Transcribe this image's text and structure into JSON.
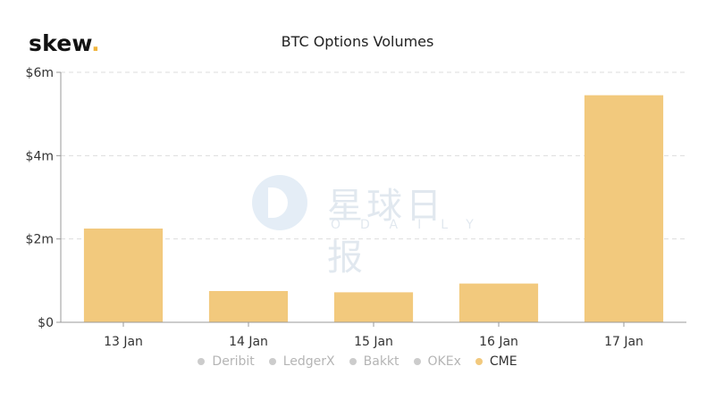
{
  "brand": {
    "name": "skew",
    "dot": "."
  },
  "watermark": {
    "cn": "星球日报",
    "en": "ODAILY"
  },
  "colors": {
    "bar": "#f2c97d",
    "grid": "#dddddd",
    "axis": "#999999",
    "brand_dot": "#f0b43c"
  },
  "chart_data": {
    "type": "bar",
    "title": "BTC Options Volumes",
    "categories": [
      "13 Jan",
      "14 Jan",
      "15 Jan",
      "16 Jan",
      "17 Jan"
    ],
    "series": [
      {
        "name": "CME",
        "values": [
          2.25,
          0.75,
          0.72,
          0.93,
          5.45
        ]
      }
    ],
    "y_ticks": [
      {
        "value": 0,
        "label": "$0"
      },
      {
        "value": 2,
        "label": "$2m"
      },
      {
        "value": 4,
        "label": "$4m"
      },
      {
        "value": 6,
        "label": "$6m"
      }
    ],
    "ylim": [
      0,
      6
    ],
    "ylabel": "",
    "xlabel": "",
    "grid": true,
    "legend": {
      "position": "bottom",
      "entries": [
        {
          "name": "Deribit",
          "visible": false
        },
        {
          "name": "LedgerX",
          "visible": false
        },
        {
          "name": "Bakkt",
          "visible": false
        },
        {
          "name": "OKEx",
          "visible": false
        },
        {
          "name": "CME",
          "visible": true
        }
      ]
    }
  }
}
